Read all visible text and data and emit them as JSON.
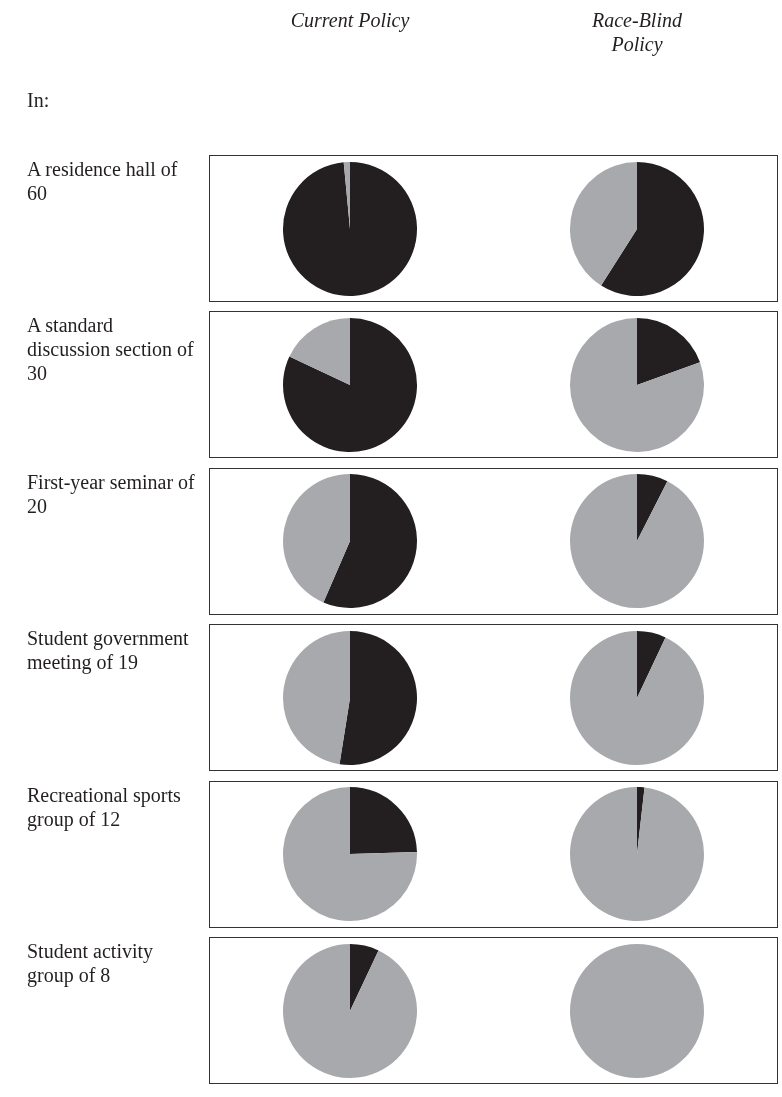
{
  "chart_data": [
    {
      "type": "pie",
      "title": "Current Policy",
      "subtitle": "In:",
      "annotations": [
        "A residence hall of 60"
      ],
      "categories": [
        null,
        null
      ],
      "values": [
        98.5,
        1.5
      ],
      "colors": [
        "#231f20",
        "#a7a9ac"
      ]
    },
    {
      "type": "pie",
      "title": "Race-Blind Policy",
      "categories": [
        null,
        null
      ],
      "values": [
        59,
        41
      ],
      "colors": [
        "#231f20",
        "#a7a9ac"
      ]
    },
    {
      "type": "pie",
      "annotations": [
        "A standard discussion section of 30"
      ],
      "categories": [
        null,
        null
      ],
      "values": [
        82,
        18
      ],
      "colors": [
        "#231f20",
        "#a7a9ac"
      ]
    },
    {
      "type": "pie",
      "categories": [
        null,
        null
      ],
      "values": [
        19.5,
        80.5
      ],
      "colors": [
        "#231f20",
        "#a7a9ac"
      ]
    },
    {
      "type": "pie",
      "annotations": [
        "First-year seminar of 20"
      ],
      "categories": [
        null,
        null
      ],
      "values": [
        56.5,
        43.5
      ],
      "colors": [
        "#231f20",
        "#a7a9ac"
      ]
    },
    {
      "type": "pie",
      "categories": [
        null,
        null
      ],
      "values": [
        7.5,
        92.5
      ],
      "colors": [
        "#231f20",
        "#a7a9ac"
      ]
    },
    {
      "type": "pie",
      "annotations": [
        "Student government meeting of 19"
      ],
      "categories": [
        null,
        null
      ],
      "values": [
        52.5,
        47.5
      ],
      "colors": [
        "#231f20",
        "#a7a9ac"
      ]
    },
    {
      "type": "pie",
      "categories": [
        null,
        null
      ],
      "values": [
        7,
        93
      ],
      "colors": [
        "#231f20",
        "#a7a9ac"
      ]
    },
    {
      "type": "pie",
      "annotations": [
        "Recreational sports group of 12"
      ],
      "categories": [
        null,
        null
      ],
      "values": [
        24.5,
        75.5
      ],
      "colors": [
        "#231f20",
        "#a7a9ac"
      ]
    },
    {
      "type": "pie",
      "categories": [
        null,
        null
      ],
      "values": [
        1.8,
        98.2
      ],
      "colors": [
        "#231f20",
        "#a7a9ac"
      ]
    },
    {
      "type": "pie",
      "annotations": [
        "Student activity group of 8"
      ],
      "categories": [
        null,
        null
      ],
      "values": [
        7,
        93
      ],
      "colors": [
        "#231f20",
        "#a7a9ac"
      ]
    },
    {
      "type": "pie",
      "categories": [
        null,
        null
      ],
      "values": [
        0,
        100
      ],
      "colors": [
        "#231f20",
        "#a7a9ac"
      ]
    }
  ]
}
